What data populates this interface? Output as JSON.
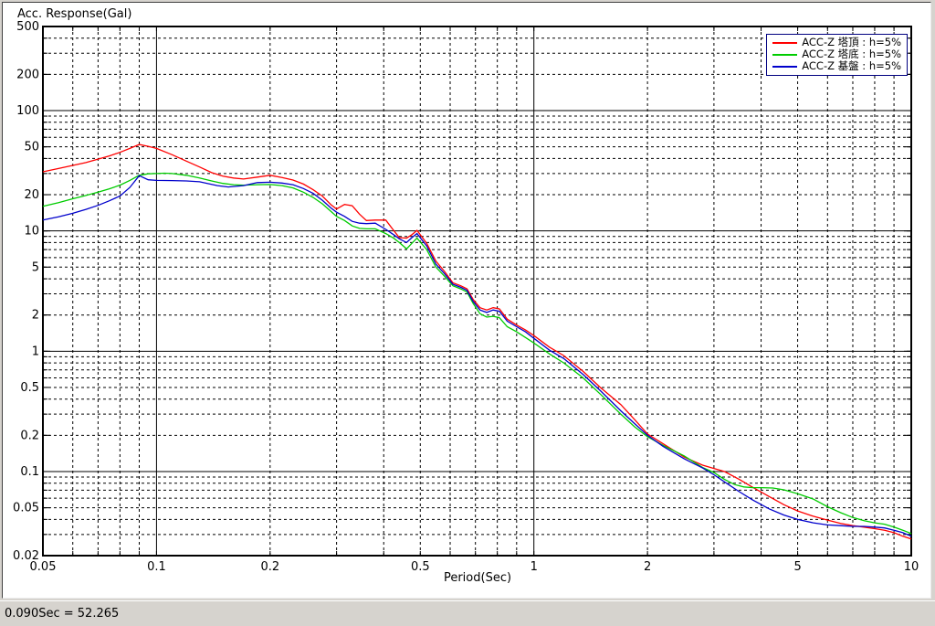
{
  "chart": {
    "y_axis_title": "Acc. Response(Gal)",
    "x_axis_title": "Period(Sec)"
  },
  "legend": {
    "border_color": "#000080",
    "items": [
      {
        "label": "ACC-Z 塔頂 : h=5%",
        "color": "#ff0000"
      },
      {
        "label": "ACC-Z 塔底 : h=5%",
        "color": "#00cc00"
      },
      {
        "label": "ACC-Z 基盤 : h=5%",
        "color": "#0000cc"
      }
    ]
  },
  "status_bar": {
    "text": "0.090Sec = 52.265"
  },
  "chart_data": {
    "type": "line",
    "title": "",
    "xlabel": "Period(Sec)",
    "ylabel": "Acc. Response(Gal)",
    "x_scale": "log",
    "y_scale": "log",
    "xlim": [
      0.05,
      10
    ],
    "ylim": [
      0.02,
      500
    ],
    "grid": true,
    "legend_position": "top-right",
    "cursor_readout": {
      "period_sec": 0.09,
      "value_gal": 52.265
    },
    "x_ticks": [
      {
        "v": 0.05,
        "label": "0.05"
      },
      {
        "v": 0.1,
        "label": "0.1"
      },
      {
        "v": 0.2,
        "label": "0.2"
      },
      {
        "v": 0.5,
        "label": "0.5"
      },
      {
        "v": 1,
        "label": "1"
      },
      {
        "v": 2,
        "label": "2"
      },
      {
        "v": 5,
        "label": "5"
      },
      {
        "v": 10,
        "label": "10"
      }
    ],
    "y_ticks": [
      {
        "v": 500,
        "label": "500"
      },
      {
        "v": 200,
        "label": "200"
      },
      {
        "v": 100,
        "label": "100"
      },
      {
        "v": 50,
        "label": "50"
      },
      {
        "v": 20,
        "label": "20"
      },
      {
        "v": 10,
        "label": "10"
      },
      {
        "v": 5,
        "label": "5"
      },
      {
        "v": 2,
        "label": "2"
      },
      {
        "v": 1,
        "label": "1"
      },
      {
        "v": 0.5,
        "label": "0.5"
      },
      {
        "v": 0.2,
        "label": "0.2"
      },
      {
        "v": 0.1,
        "label": "0.1"
      },
      {
        "v": 0.05,
        "label": "0.05"
      },
      {
        "v": 0.02,
        "label": "0.02"
      }
    ],
    "x_grid_solid": [
      0.1,
      1
    ],
    "y_grid_solid": [
      100,
      10,
      1,
      0.1
    ],
    "x_grid_dashed": [
      0.06,
      0.07,
      0.08,
      0.09,
      0.2,
      0.3,
      0.4,
      0.5,
      0.6,
      0.7,
      0.8,
      0.9,
      2,
      3,
      4,
      5,
      6,
      7,
      8,
      9
    ],
    "y_grid_dashed": [
      0.03,
      0.04,
      0.05,
      0.06,
      0.07,
      0.08,
      0.09,
      0.2,
      0.3,
      0.4,
      0.5,
      0.6,
      0.7,
      0.8,
      0.9,
      2,
      3,
      4,
      5,
      6,
      7,
      8,
      9,
      20,
      30,
      40,
      50,
      60,
      70,
      80,
      90,
      200,
      300,
      400
    ],
    "series": [
      {
        "name": "ACC-Z 塔頂 : h=5%",
        "color": "#ff0000",
        "points": [
          [
            0.05,
            31
          ],
          [
            0.055,
            33
          ],
          [
            0.06,
            35
          ],
          [
            0.065,
            37
          ],
          [
            0.07,
            39.5
          ],
          [
            0.075,
            42
          ],
          [
            0.08,
            45
          ],
          [
            0.085,
            48.5
          ],
          [
            0.09,
            52.3
          ],
          [
            0.095,
            50.5
          ],
          [
            0.1,
            48.5
          ],
          [
            0.11,
            43
          ],
          [
            0.12,
            38
          ],
          [
            0.13,
            34
          ],
          [
            0.14,
            30.5
          ],
          [
            0.15,
            28.5
          ],
          [
            0.16,
            27.5
          ],
          [
            0.17,
            27
          ],
          [
            0.185,
            28
          ],
          [
            0.2,
            29
          ],
          [
            0.215,
            27.8
          ],
          [
            0.23,
            26.5
          ],
          [
            0.245,
            24.5
          ],
          [
            0.26,
            22
          ],
          [
            0.275,
            19.5
          ],
          [
            0.29,
            16.5
          ],
          [
            0.3,
            15.2
          ],
          [
            0.315,
            16.6
          ],
          [
            0.33,
            16.2
          ],
          [
            0.345,
            13.8
          ],
          [
            0.36,
            12.2
          ],
          [
            0.38,
            12.3
          ],
          [
            0.405,
            12.3
          ],
          [
            0.425,
            10.1
          ],
          [
            0.44,
            8.8
          ],
          [
            0.46,
            8.7
          ],
          [
            0.475,
            9.3
          ],
          [
            0.49,
            10.1
          ],
          [
            0.52,
            7.9
          ],
          [
            0.55,
            5.6
          ],
          [
            0.58,
            4.6
          ],
          [
            0.61,
            3.7
          ],
          [
            0.64,
            3.5
          ],
          [
            0.665,
            3.3
          ],
          [
            0.69,
            2.7
          ],
          [
            0.72,
            2.3
          ],
          [
            0.75,
            2.2
          ],
          [
            0.78,
            2.3
          ],
          [
            0.81,
            2.25
          ],
          [
            0.85,
            1.85
          ],
          [
            0.9,
            1.65
          ],
          [
            0.95,
            1.5
          ],
          [
            1.0,
            1.35
          ],
          [
            1.1,
            1.08
          ],
          [
            1.2,
            0.92
          ],
          [
            1.35,
            0.68
          ],
          [
            1.5,
            0.5
          ],
          [
            1.7,
            0.36
          ],
          [
            1.85,
            0.27
          ],
          [
            2.0,
            0.205
          ],
          [
            2.2,
            0.17
          ],
          [
            2.5,
            0.132
          ],
          [
            2.8,
            0.113
          ],
          [
            3.0,
            0.106
          ],
          [
            3.2,
            0.1
          ],
          [
            3.5,
            0.086
          ],
          [
            3.8,
            0.074
          ],
          [
            4.2,
            0.062
          ],
          [
            4.6,
            0.053
          ],
          [
            5.0,
            0.047
          ],
          [
            5.5,
            0.0425
          ],
          [
            6.0,
            0.0395
          ],
          [
            6.5,
            0.037
          ],
          [
            7.0,
            0.0355
          ],
          [
            7.5,
            0.0345
          ],
          [
            8.0,
            0.0335
          ],
          [
            8.5,
            0.0325
          ],
          [
            9.0,
            0.031
          ],
          [
            9.5,
            0.029
          ],
          [
            10,
            0.0275
          ]
        ]
      },
      {
        "name": "ACC-Z 塔底 : h=5%",
        "color": "#00cc00",
        "points": [
          [
            0.05,
            16
          ],
          [
            0.055,
            17.2
          ],
          [
            0.06,
            18.5
          ],
          [
            0.065,
            19.7
          ],
          [
            0.07,
            21
          ],
          [
            0.075,
            22.4
          ],
          [
            0.08,
            24
          ],
          [
            0.085,
            26.3
          ],
          [
            0.09,
            29
          ],
          [
            0.095,
            29.8
          ],
          [
            0.1,
            30
          ],
          [
            0.105,
            30.2
          ],
          [
            0.11,
            30
          ],
          [
            0.12,
            29
          ],
          [
            0.13,
            27.5
          ],
          [
            0.14,
            26
          ],
          [
            0.15,
            24.8
          ],
          [
            0.16,
            24.2
          ],
          [
            0.17,
            24
          ],
          [
            0.185,
            24.2
          ],
          [
            0.2,
            24.3
          ],
          [
            0.215,
            23.8
          ],
          [
            0.23,
            22.8
          ],
          [
            0.245,
            21
          ],
          [
            0.26,
            19
          ],
          [
            0.275,
            16.8
          ],
          [
            0.29,
            14.5
          ],
          [
            0.3,
            13.2
          ],
          [
            0.315,
            12.2
          ],
          [
            0.33,
            11
          ],
          [
            0.345,
            10.5
          ],
          [
            0.36,
            10.4
          ],
          [
            0.38,
            10.4
          ],
          [
            0.405,
            9.5
          ],
          [
            0.425,
            8.7
          ],
          [
            0.44,
            8.0
          ],
          [
            0.46,
            7.1
          ],
          [
            0.475,
            7.9
          ],
          [
            0.49,
            8.7
          ],
          [
            0.52,
            7.0
          ],
          [
            0.55,
            5.0
          ],
          [
            0.58,
            4.2
          ],
          [
            0.61,
            3.5
          ],
          [
            0.64,
            3.3
          ],
          [
            0.665,
            3.1
          ],
          [
            0.69,
            2.5
          ],
          [
            0.72,
            2.05
          ],
          [
            0.75,
            1.92
          ],
          [
            0.78,
            1.95
          ],
          [
            0.81,
            1.9
          ],
          [
            0.85,
            1.6
          ],
          [
            0.9,
            1.45
          ],
          [
            0.95,
            1.3
          ],
          [
            1.0,
            1.17
          ],
          [
            1.1,
            0.95
          ],
          [
            1.2,
            0.8
          ],
          [
            1.35,
            0.6
          ],
          [
            1.5,
            0.44
          ],
          [
            1.7,
            0.3
          ],
          [
            1.85,
            0.235
          ],
          [
            2.0,
            0.195
          ],
          [
            2.2,
            0.165
          ],
          [
            2.5,
            0.135
          ],
          [
            2.8,
            0.108
          ],
          [
            3.0,
            0.098
          ],
          [
            3.2,
            0.086
          ],
          [
            3.4,
            0.078
          ],
          [
            3.6,
            0.0745
          ],
          [
            3.8,
            0.0735
          ],
          [
            4.0,
            0.0735
          ],
          [
            4.3,
            0.073
          ],
          [
            4.6,
            0.0705
          ],
          [
            5.0,
            0.0655
          ],
          [
            5.5,
            0.059
          ],
          [
            6.0,
            0.051
          ],
          [
            6.5,
            0.0455
          ],
          [
            7.0,
            0.0415
          ],
          [
            7.5,
            0.039
          ],
          [
            8.0,
            0.0375
          ],
          [
            8.5,
            0.0365
          ],
          [
            9.0,
            0.0345
          ],
          [
            9.5,
            0.0325
          ],
          [
            10,
            0.0305
          ]
        ]
      },
      {
        "name": "ACC-Z 基盤 : h=5%",
        "color": "#0000cc",
        "points": [
          [
            0.05,
            12.3
          ],
          [
            0.055,
            13.1
          ],
          [
            0.06,
            14
          ],
          [
            0.065,
            15.1
          ],
          [
            0.07,
            16.3
          ],
          [
            0.075,
            17.8
          ],
          [
            0.08,
            19.5
          ],
          [
            0.085,
            23
          ],
          [
            0.09,
            28.8
          ],
          [
            0.095,
            26.6
          ],
          [
            0.1,
            26.3
          ],
          [
            0.11,
            26.2
          ],
          [
            0.12,
            26
          ],
          [
            0.13,
            25.6
          ],
          [
            0.145,
            23.8
          ],
          [
            0.155,
            23.2
          ],
          [
            0.17,
            23.8
          ],
          [
            0.185,
            25.2
          ],
          [
            0.2,
            25.4
          ],
          [
            0.215,
            25
          ],
          [
            0.23,
            24.2
          ],
          [
            0.245,
            22.5
          ],
          [
            0.26,
            20.5
          ],
          [
            0.275,
            18
          ],
          [
            0.29,
            15.5
          ],
          [
            0.3,
            14.3
          ],
          [
            0.315,
            13.2
          ],
          [
            0.33,
            12
          ],
          [
            0.345,
            11.6
          ],
          [
            0.36,
            11.5
          ],
          [
            0.38,
            11.6
          ],
          [
            0.405,
            10.3
          ],
          [
            0.425,
            9.3
          ],
          [
            0.44,
            8.6
          ],
          [
            0.46,
            8.0
          ],
          [
            0.475,
            8.8
          ],
          [
            0.49,
            9.5
          ],
          [
            0.52,
            7.5
          ],
          [
            0.55,
            5.3
          ],
          [
            0.58,
            4.4
          ],
          [
            0.61,
            3.6
          ],
          [
            0.64,
            3.4
          ],
          [
            0.665,
            3.2
          ],
          [
            0.69,
            2.6
          ],
          [
            0.72,
            2.2
          ],
          [
            0.75,
            2.1
          ],
          [
            0.78,
            2.2
          ],
          [
            0.81,
            2.15
          ],
          [
            0.85,
            1.78
          ],
          [
            0.9,
            1.6
          ],
          [
            0.95,
            1.45
          ],
          [
            1.0,
            1.28
          ],
          [
            1.1,
            1.02
          ],
          [
            1.2,
            0.87
          ],
          [
            1.35,
            0.64
          ],
          [
            1.5,
            0.47
          ],
          [
            1.7,
            0.32
          ],
          [
            1.85,
            0.25
          ],
          [
            2.0,
            0.2
          ],
          [
            2.2,
            0.162
          ],
          [
            2.5,
            0.128
          ],
          [
            2.8,
            0.107
          ],
          [
            3.0,
            0.094
          ],
          [
            3.2,
            0.082
          ],
          [
            3.5,
            0.068
          ],
          [
            3.8,
            0.058
          ],
          [
            4.2,
            0.049
          ],
          [
            4.6,
            0.0435
          ],
          [
            5.0,
            0.04
          ],
          [
            5.5,
            0.0375
          ],
          [
            6.0,
            0.036
          ],
          [
            6.5,
            0.0355
          ],
          [
            7.0,
            0.035
          ],
          [
            7.5,
            0.035
          ],
          [
            8.0,
            0.0345
          ],
          [
            8.5,
            0.034
          ],
          [
            9.0,
            0.0325
          ],
          [
            9.5,
            0.031
          ],
          [
            10,
            0.029
          ]
        ]
      }
    ]
  }
}
